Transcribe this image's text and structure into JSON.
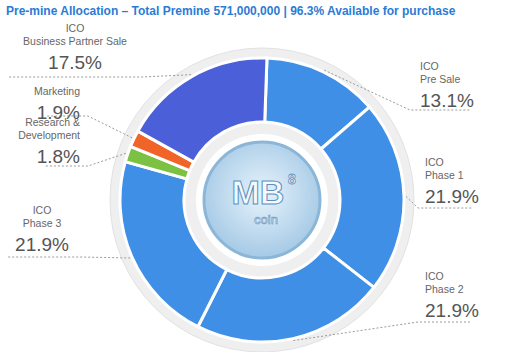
{
  "chart_data": {
    "type": "pie",
    "title": "Pre-mine Allocation – Total Premine 571,000,000 | 96.3% Available for purchase",
    "categories": [
      "ICO\nPre Sale",
      "ICO\nPhase 1",
      "ICO\nPhase 2",
      "ICO\nPhase 3",
      "Research &\nDevelopment",
      "Marketing",
      "ICO\nBusiness Partner Sale"
    ],
    "values": [
      13.1,
      21.9,
      21.9,
      21.9,
      1.8,
      1.9,
      17.5
    ],
    "value_labels": [
      "13.1%",
      "21.9%",
      "21.9%",
      "21.9%",
      "1.8%",
      "1.9%",
      "17.5%"
    ],
    "colors": [
      "#3f8fe6",
      "#3f8fe6",
      "#3f8fe6",
      "#3f8fe6",
      "#7dc142",
      "#f0642a",
      "#4a5fd8"
    ],
    "annotations": [
      "MB",
      "8",
      "coin"
    ]
  }
}
